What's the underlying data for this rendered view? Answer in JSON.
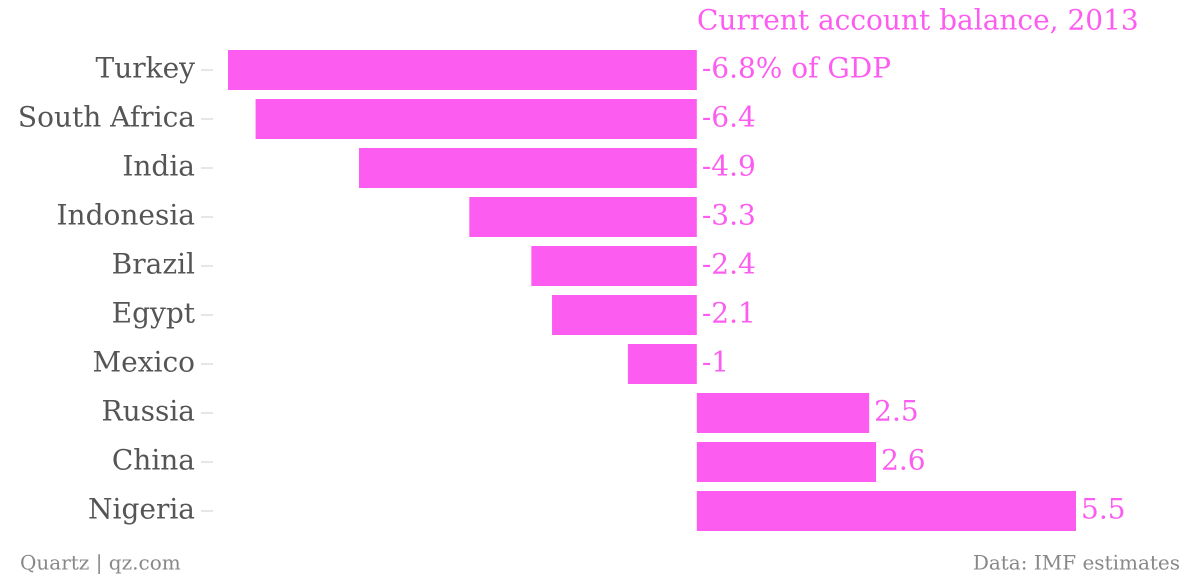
{
  "chart_data": {
    "type": "barh",
    "title": "Current account balance, 2013",
    "categories": [
      "Turkey",
      "South Africa",
      "India",
      "Indonesia",
      "Brazil",
      "Egypt",
      "Mexico",
      "Russia",
      "China",
      "Nigeria"
    ],
    "values": [
      -6.8,
      -6.4,
      -4.9,
      -3.3,
      -2.4,
      -2.1,
      -1,
      2.5,
      2.6,
      5.5
    ],
    "value_labels": [
      "-6.8% of GDP",
      "-6.4",
      "-4.9",
      "-3.3",
      "-2.4",
      "-2.1",
      "-1",
      "2.5",
      "2.6",
      "5.5"
    ],
    "color": "#fd5cf1",
    "xlim": [
      -6.8,
      5.5
    ],
    "source": "Data: IMF estimates",
    "credit": "Quartz | qz.com"
  }
}
